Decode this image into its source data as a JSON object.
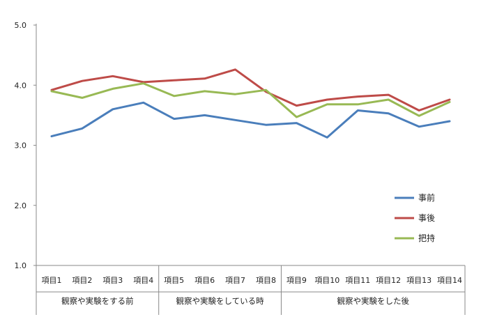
{
  "chart_data": {
    "type": "line",
    "ylim": [
      1.0,
      5.0
    ],
    "y_ticks": [
      "1.0",
      "2.0",
      "3.0",
      "4.0",
      "5.0"
    ],
    "grid": false,
    "legend_position": "right",
    "categories": [
      "項目1",
      "項目2",
      "項目3",
      "項目4",
      "項目5",
      "項目6",
      "項目7",
      "項目8",
      "項目9",
      "項目10",
      "項目11",
      "項目12",
      "項目13",
      "項目14"
    ],
    "groups": [
      {
        "label": "観察や実験をする前",
        "count": 4
      },
      {
        "label": "観察や実験をしている時",
        "count": 4
      },
      {
        "label": "観察や実験をした後",
        "count": 6
      }
    ],
    "series": [
      {
        "name": "事前",
        "color": "#4a7ebb",
        "values": [
          3.15,
          3.28,
          3.6,
          3.71,
          3.44,
          3.5,
          3.42,
          3.34,
          3.37,
          3.13,
          3.58,
          3.53,
          3.31,
          3.4
        ]
      },
      {
        "name": "事後",
        "color": "#be4b48",
        "values": [
          3.92,
          4.07,
          4.15,
          4.05,
          4.08,
          4.11,
          4.26,
          3.89,
          3.66,
          3.76,
          3.81,
          3.84,
          3.58,
          3.76
        ]
      },
      {
        "name": "把持",
        "color": "#98b954",
        "values": [
          3.9,
          3.79,
          3.94,
          4.03,
          3.82,
          3.9,
          3.85,
          3.92,
          3.47,
          3.68,
          3.68,
          3.76,
          3.49,
          3.72
        ]
      }
    ]
  }
}
